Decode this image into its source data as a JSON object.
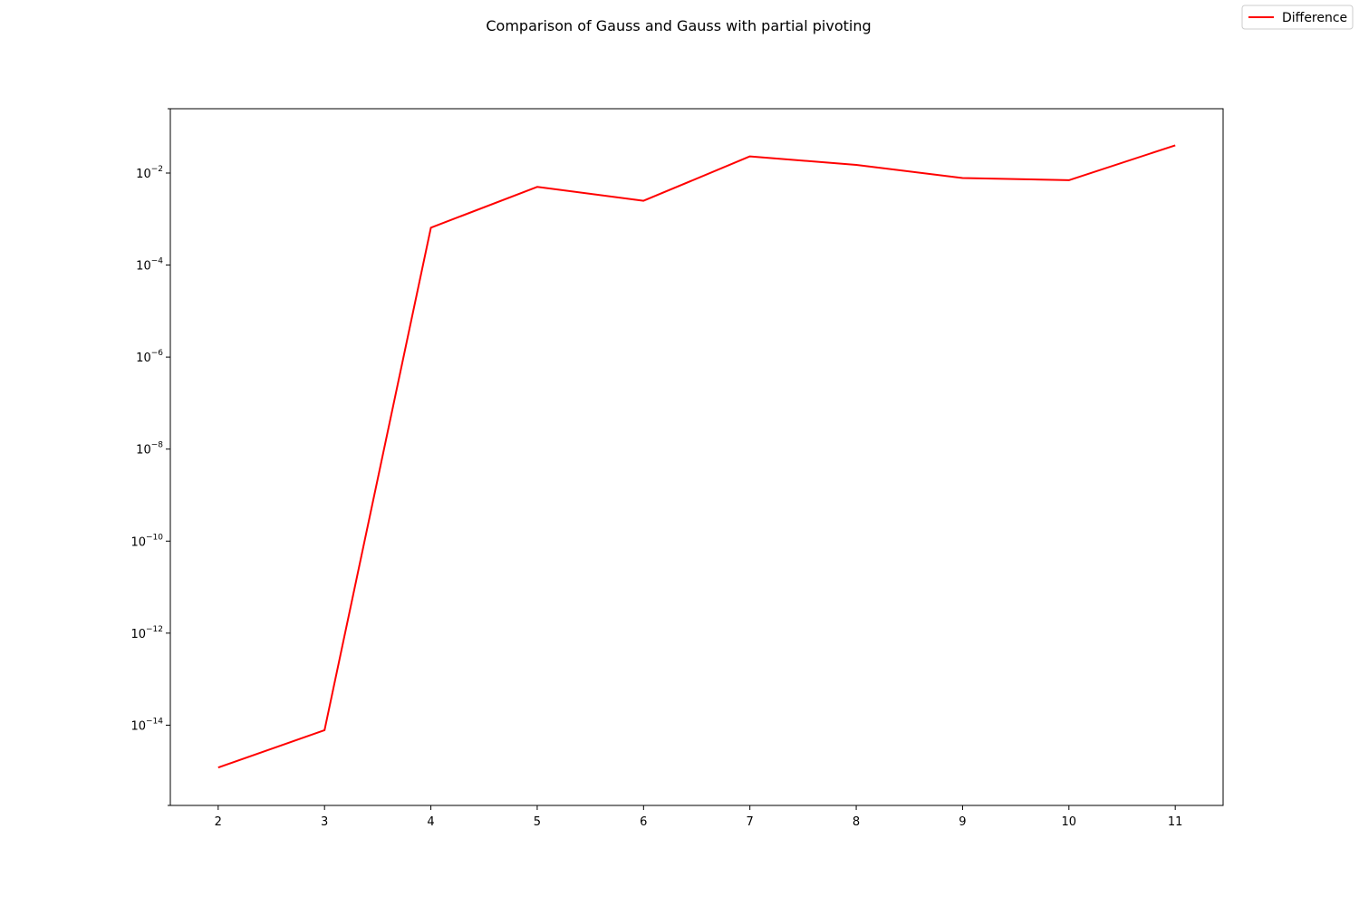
{
  "chart_data": {
    "type": "line",
    "title": "Comparison of Gauss and Gauss with partial pivoting",
    "xlabel": "",
    "ylabel": "",
    "yscale": "log",
    "xlim": [
      1.55,
      11.45
    ],
    "ylim": [
      1.8e-16,
      0.25
    ],
    "x_ticks": [
      "2",
      "3",
      "4",
      "5",
      "6",
      "7",
      "8",
      "9",
      "10",
      "11"
    ],
    "y_ticks": [
      {
        "base": "10",
        "exp": "−2",
        "value": 0.01
      },
      {
        "base": "10",
        "exp": "−4",
        "value": 0.0001
      },
      {
        "base": "10",
        "exp": "−6",
        "value": 1e-06
      },
      {
        "base": "10",
        "exp": "−8",
        "value": 1e-08
      },
      {
        "base": "10",
        "exp": "−10",
        "value": 1e-10
      },
      {
        "base": "10",
        "exp": "−12",
        "value": 1e-12
      },
      {
        "base": "10",
        "exp": "−14",
        "value": 1e-14
      }
    ],
    "grid": false,
    "legend_position": "top-right",
    "series": [
      {
        "name": "Difference",
        "color": "#ff0000",
        "x": [
          2,
          3,
          4,
          5,
          6,
          7,
          8,
          9,
          10,
          11
        ],
        "y": [
          1.2e-15,
          7.8e-15,
          0.00065,
          0.005,
          0.0025,
          0.023,
          0.015,
          0.0078,
          0.007,
          0.04
        ]
      }
    ]
  }
}
